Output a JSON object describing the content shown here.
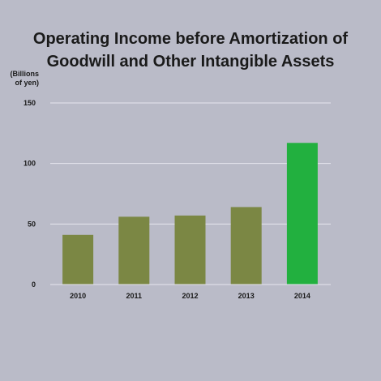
{
  "chart_data": {
    "type": "bar",
    "title_line1": "Operating Income before Amortization of",
    "title_line2": "Goodwill and Other Intangible Assets",
    "unit_label": "(Billions\nof yen)",
    "categories": [
      "2010",
      "2011",
      "2012",
      "2013",
      "2014"
    ],
    "values": [
      41,
      56,
      57,
      64,
      117
    ],
    "ylim": [
      0,
      150
    ],
    "yticks": [
      0,
      50,
      100,
      150
    ],
    "grid": true,
    "colors": {
      "default": "#7b8744",
      "highlight": "#22b03f",
      "grid": "#e6e6ee",
      "background": "#babbc8"
    },
    "highlight_index": 4
  }
}
